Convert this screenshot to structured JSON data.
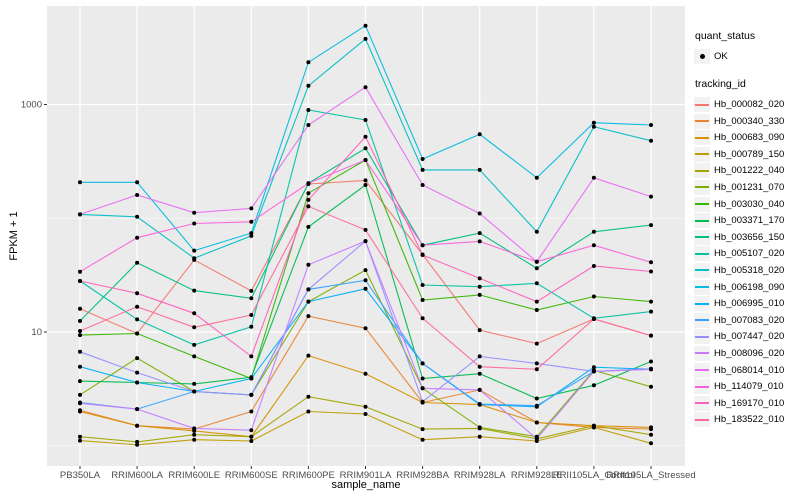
{
  "chart_data": {
    "type": "line",
    "title": "",
    "xlabel": "sample_name",
    "ylabel": "FPKM + 1",
    "y_scale": "log10",
    "y_ticks": [
      1000,
      10
    ],
    "y_tick_labels": [
      "1000",
      "10"
    ],
    "y_minor_ticks": [
      100,
      1
    ],
    "ylim": [
      0.72,
      7300
    ],
    "grid": true,
    "legend_position": "right",
    "point_marker": "filled black circle",
    "categories": [
      "PB350LA",
      "RRIM600LA",
      "RRIM600LE",
      "RRIM600SE",
      "RRIM600PE",
      "RRIM901LA",
      "RRIM928BA",
      "RRIM928LA",
      "RRIM928LE",
      "RRII105LA_Control",
      "RRII105LA_Stressed"
    ],
    "series": [
      {
        "name": "Hb_000082_020",
        "color": "#F8766D",
        "values": [
          16,
          9.7,
          43,
          23,
          200,
          215,
          48,
          10.4,
          7.9,
          13,
          9.3
        ]
      },
      {
        "name": "Hb_000340_330",
        "color": "#EA8331",
        "values": [
          2.05,
          1.5,
          1.4,
          2.0,
          13.8,
          10.8,
          2.4,
          3.1,
          1.6,
          1.45,
          1.4
        ]
      },
      {
        "name": "Hb_000683_090",
        "color": "#D89000",
        "values": [
          2.0,
          1.5,
          1.35,
          1.2,
          6.2,
          4.3,
          2.4,
          2.3,
          1.6,
          1.5,
          1.45
        ]
      },
      {
        "name": "Hb_000789_150",
        "color": "#C09B00",
        "values": [
          1.11,
          1.02,
          1.13,
          1.1,
          2.0,
          1.9,
          1.13,
          1.2,
          1.1,
          1.45,
          1.05
        ]
      },
      {
        "name": "Hb_001222_040",
        "color": "#A3A500",
        "values": [
          1.2,
          1.08,
          1.25,
          1.2,
          2.7,
          2.2,
          1.4,
          1.42,
          1.15,
          1.5,
          1.25
        ]
      },
      {
        "name": "Hb_001231_070",
        "color": "#7CAE00",
        "values": [
          2.8,
          5.9,
          3.0,
          2.8,
          18.5,
          35,
          3.2,
          1.45,
          1.2,
          4.6,
          3.3
        ]
      },
      {
        "name": "Hb_003030_040",
        "color": "#39B600",
        "values": [
          9.4,
          9.7,
          6.1,
          3.9,
          166,
          325,
          19.1,
          21.2,
          15.6,
          20.5,
          18.5
        ]
      },
      {
        "name": "Hb_003371_170",
        "color": "#00BB4E",
        "values": [
          3.7,
          3.6,
          3.5,
          4.0,
          84,
          196,
          3.9,
          4.3,
          2.6,
          3.4,
          5.5
        ]
      },
      {
        "name": "Hb_003656_150",
        "color": "#00BF7D",
        "values": [
          12.5,
          40.6,
          23.1,
          19.8,
          203,
          412,
          58,
          74,
          36.3,
          76,
          87
        ]
      },
      {
        "name": "Hb_005107_020",
        "color": "#00C1A3",
        "values": [
          28.1,
          12.9,
          7.7,
          11.1,
          895,
          730,
          25.9,
          25.0,
          26.8,
          13.2,
          15.1
        ]
      },
      {
        "name": "Hb_005318_020",
        "color": "#00BFC4",
        "values": [
          108,
          103,
          44.5,
          70,
          1460,
          3770,
          266,
          266,
          76,
          638,
          481
        ]
      },
      {
        "name": "Hb_006198_090",
        "color": "#00BAE0",
        "values": [
          207,
          207,
          52,
          74,
          2350,
          4930,
          332,
          547,
          227,
          692,
          660
        ]
      },
      {
        "name": "Hb_006995_010",
        "color": "#00B0F6",
        "values": [
          4.95,
          3.6,
          3.0,
          3.9,
          18.5,
          24,
          5.3,
          2.3,
          2.2,
          4.9,
          4.7
        ]
      },
      {
        "name": "Hb_007083_020",
        "color": "#35A2FF",
        "values": [
          2.4,
          2.1,
          3.0,
          2.8,
          23.7,
          28.5,
          5.3,
          2.33,
          2.25,
          4.5,
          4.75
        ]
      },
      {
        "name": "Hb_007447_020",
        "color": "#9590FF",
        "values": [
          6.7,
          4.4,
          3.0,
          2.8,
          23.7,
          63,
          2.44,
          6.1,
          5.3,
          4.5,
          4.7
        ]
      },
      {
        "name": "Hb_008096_020",
        "color": "#C77CFF",
        "values": [
          2.36,
          2.1,
          1.42,
          1.37,
          39,
          63,
          3.2,
          3.1,
          1.15,
          4.5,
          4.7
        ]
      },
      {
        "name": "Hb_068014_010",
        "color": "#E76BF3",
        "values": [
          108,
          160,
          112,
          122,
          660,
          1420,
          196,
          110,
          41.5,
          227,
          155
        ]
      },
      {
        "name": "Hb_114079_010",
        "color": "#FA62DB",
        "values": [
          33.9,
          67.5,
          90,
          93,
          203,
          325,
          58,
          62.6,
          41.5,
          58,
          41
        ]
      },
      {
        "name": "Hb_169170_010",
        "color": "#FF62BC",
        "values": [
          28.1,
          21.9,
          14.6,
          6.1,
          145,
          521,
          47.5,
          29.6,
          18.5,
          38,
          34
        ]
      },
      {
        "name": "Hb_183522_010",
        "color": "#FF6A98",
        "values": [
          10.2,
          16.7,
          11,
          14.1,
          127,
          79,
          13.2,
          4.95,
          4.7,
          13,
          9.3
        ]
      }
    ],
    "quant_status": {
      "title": "quant_status",
      "items": [
        {
          "label": "OK",
          "marker": "point",
          "color": "#000000"
        }
      ]
    },
    "tracking_legend_title": "tracking_id"
  },
  "colors": {
    "panel_bg": "#EBEBEB",
    "grid": "#FFFFFF",
    "point": "#000000",
    "tick_mark": "#333333",
    "tick_text": "#4D4D4D",
    "axis_title_text": "#000000",
    "legend_key_bg": "#F2F2F2",
    "figure_bg": "#FFFFFF"
  }
}
